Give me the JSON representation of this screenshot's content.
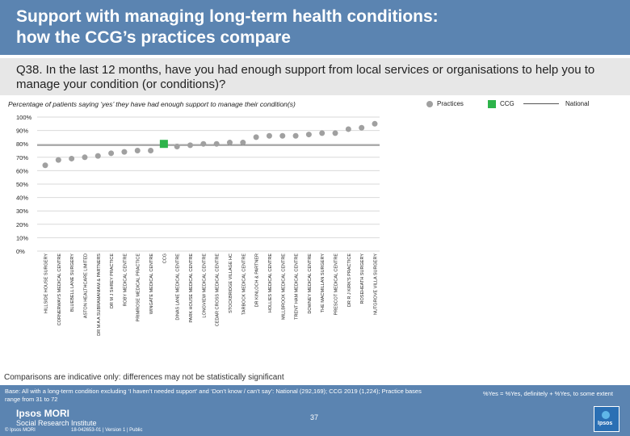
{
  "header": {
    "title": "Support with managing long-term health conditions:\nhow the CCG’s practices compare"
  },
  "question": {
    "text": "Q38. In the last 12 months, have you had enough support from local services or organisations to help you to manage your condition (or conditions)?"
  },
  "legend": {
    "practices": "Practices",
    "ccg": "CCG",
    "national": "National"
  },
  "note": "Comparisons are indicative only: differences may not be statistically significant",
  "footer": {
    "base": "Base: All with a long-term condition excluding ‘I haven’t needed support’ and ‘Don’t know / can’t say’: National (292,169); CCG 2019 (1,224); Practice bases range from 31 to 72",
    "ratio": "%Yes = %Yes, definitely + %Yes, to some extent",
    "page": "37",
    "brand_name": "Ipsos MORI",
    "brand_tag": "Social Research Institute",
    "copyright": "© Ipsos MORI",
    "reference": "18-042653-01 | Version 1 | Public",
    "logo_text": "Ipsos"
  },
  "colors": {
    "practice": "#a0a0a0",
    "ccg": "#2db34a",
    "national": "#555555",
    "grid": "#d9d9d9"
  },
  "chart_data": {
    "type": "scatter",
    "title": "Percentage of patients saying ‘yes’ they have had enough support to manage their condition(s)",
    "ylim": [
      0,
      100
    ],
    "y_ticks": [
      "0%",
      "10%",
      "20%",
      "30%",
      "40%",
      "50%",
      "60%",
      "70%",
      "80%",
      "90%",
      "100%"
    ],
    "grid": true,
    "legend_position": "top-right",
    "national": 79,
    "categories": [
      "HILLSIDE HOUSE SURGERY",
      "CORNERWAYS MEDICAL CENTRE",
      "BLUEBELL LANE SURGERY",
      "ASTON HEALTHCARE LIMITED",
      "DR M A A SUBRAMANIAM & PARTNERS",
      "DR M J SHREY PRACTICE",
      "ROBY MEDICAL CENTRE",
      "PRIMROSE MEDICAL PRACTICE",
      "WINGATE MEDICAL CENTRE",
      "CCG",
      "DINAS LANE MEDICAL CENTRE",
      "PARK HOUSE MEDICAL CENTRE",
      "LONGVIEW MEDICAL CENTRE",
      "CEDAR CROSS MEDICAL CENTRE",
      "STOCKBRIDGE VILLAGE HC",
      "TARBOCK MEDICAL CENTRE",
      "DR KINLOCH & PARTNER",
      "HOLLIES MEDICAL CENTRE",
      "MILLBROOK MEDICAL CENTRE",
      "TRENT HAM MEDICAL CENTRE",
      "DOWNEY MEDICAL CENTRE",
      "THE MACMILLAN SURGERY",
      "PRESCOT MEDICAL CENTRE",
      "DR R J KIRK'S PRACTICE",
      "ROSEHEATH SURGERY",
      "NUTGROVE VILLA SURGERY"
    ],
    "values": [
      64,
      68,
      69,
      70,
      71,
      73,
      74,
      75,
      75,
      80,
      78,
      79,
      80,
      80,
      81,
      81,
      85,
      86,
      86,
      86,
      87,
      88,
      88,
      91,
      92,
      95
    ],
    "ccg_index": 9
  }
}
